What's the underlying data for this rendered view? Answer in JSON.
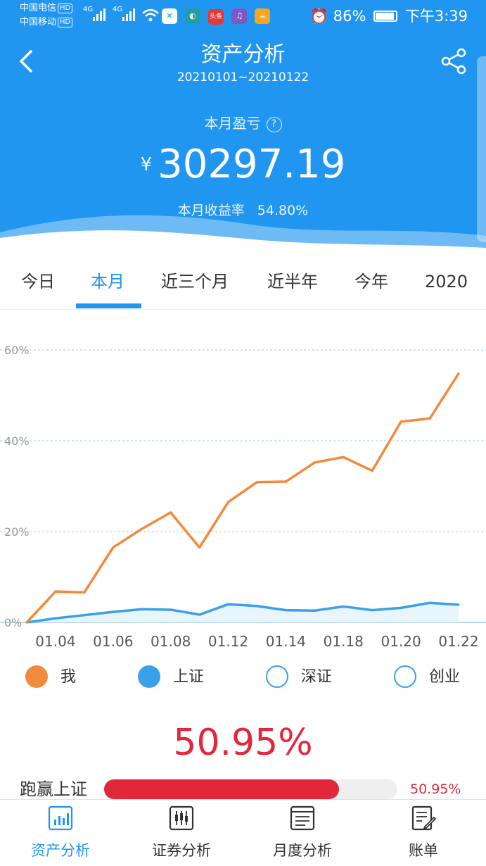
{
  "status_bar": {
    "carrier1": "中国电信",
    "carrier2": "中国移动",
    "hd": "HD",
    "net1": "4G",
    "net2": "4G",
    "app_news": "头条",
    "battery": "86%",
    "time": "下午3:39"
  },
  "header": {
    "title": "资产分析",
    "date_range": "20210101~20210122",
    "pl_label": "本月盈亏",
    "help_glyph": "?",
    "currency": "¥",
    "amount": "30297.19",
    "rate_label": "本月收益率",
    "rate_value": "54.80%",
    "bg_color": "#2196f0"
  },
  "tabs": [
    {
      "label": "今日",
      "active": false
    },
    {
      "label": "本月",
      "active": true
    },
    {
      "label": "近三个月",
      "active": false
    },
    {
      "label": "近半年",
      "active": false
    },
    {
      "label": "今年",
      "active": false
    },
    {
      "label": "2020",
      "active": false
    }
  ],
  "chart_data": {
    "type": "line",
    "ylim": [
      0,
      60
    ],
    "y_ticks": [
      "0%",
      "20%",
      "40%",
      "60%"
    ],
    "x_tick_labels": [
      "01.04",
      "01.06",
      "01.08",
      "01.12",
      "01.14",
      "01.18",
      "01.20",
      "01.22"
    ],
    "x": [
      "01.01",
      "01.04",
      "01.05",
      "01.06",
      "01.07",
      "01.08",
      "01.11",
      "01.12",
      "01.13",
      "01.14",
      "01.15",
      "01.18",
      "01.19",
      "01.20",
      "01.21",
      "01.22"
    ],
    "series": [
      {
        "name": "我",
        "color": "#f28a3d",
        "values": [
          0,
          6.8,
          6.6,
          16.5,
          20.6,
          24.2,
          16.5,
          26.5,
          30.9,
          31.0,
          35.2,
          36.4,
          33.4,
          44.2,
          44.9,
          54.8
        ]
      },
      {
        "name": "上证",
        "color": "#3aa0ea",
        "values": [
          0,
          0.9,
          1.6,
          2.3,
          2.9,
          2.8,
          1.7,
          4.0,
          3.6,
          2.7,
          2.6,
          3.5,
          2.7,
          3.2,
          4.3,
          3.9
        ]
      }
    ],
    "grid": true,
    "legend": [
      "我",
      "上证",
      "深证",
      "创业"
    ],
    "legend_colors": [
      "#f28a3d",
      "#3aa0ea",
      "#3aa0ea",
      "#3aa0ea"
    ],
    "legend_filled": [
      true,
      true,
      false,
      false
    ]
  },
  "beat": {
    "big_pct": "50.95%",
    "label": "跑赢上证",
    "value": "50.95%",
    "fraction": 0.8
  },
  "bottom_nav": [
    {
      "label": "资产分析",
      "icon": "asset-analysis-icon",
      "active": true
    },
    {
      "label": "证券分析",
      "icon": "candlestick-icon",
      "active": false
    },
    {
      "label": "月度分析",
      "icon": "monthly-analysis-icon",
      "active": false
    },
    {
      "label": "账单",
      "icon": "bill-icon",
      "active": false
    }
  ],
  "colors": {
    "accent": "#2196f0",
    "orange": "#f28a3d",
    "red": "#e2273b"
  }
}
